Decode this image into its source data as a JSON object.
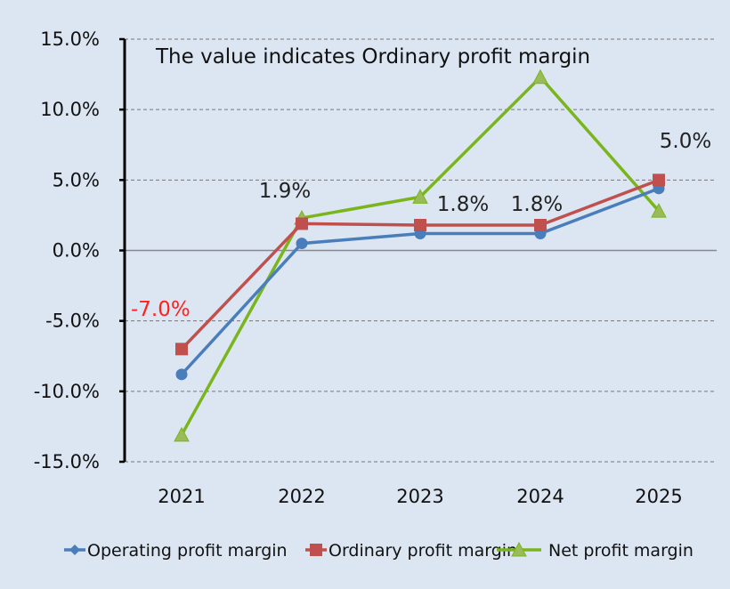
{
  "chart_data": {
    "type": "line",
    "annotation": "The value indicates Ordinary profit margin",
    "categories": [
      "2021",
      "2022",
      "2023",
      "2024",
      "2025"
    ],
    "ylim": [
      -15,
      15
    ],
    "yticks": [
      "15.0%",
      "10.0%",
      "5.0%",
      "0.0%",
      "-5.0%",
      "-10.0%",
      "-15.0%"
    ],
    "ytick_values": [
      15,
      10,
      5,
      0,
      -5,
      -10,
      -15
    ],
    "grid": true,
    "legend_position": "bottom",
    "series": [
      {
        "name": "Operating profit margin",
        "values": [
          -8.8,
          0.5,
          1.2,
          1.2,
          4.4
        ],
        "color": "#4a7ebb",
        "marker": "circle"
      },
      {
        "name": "Ordinary profit margin",
        "values": [
          -7.0,
          1.9,
          1.8,
          1.8,
          5.0
        ],
        "color": "#c0504d",
        "marker": "square",
        "data_labels": [
          "-7.0%",
          "1.9%",
          "1.8%",
          "1.8%",
          "5.0%"
        ],
        "negative_label_color": "#ff2020"
      },
      {
        "name": "Net profit margin",
        "values": [
          -13.1,
          2.3,
          3.8,
          12.3,
          2.8
        ],
        "color": "#7ab51d",
        "marker": "triangle"
      }
    ]
  }
}
